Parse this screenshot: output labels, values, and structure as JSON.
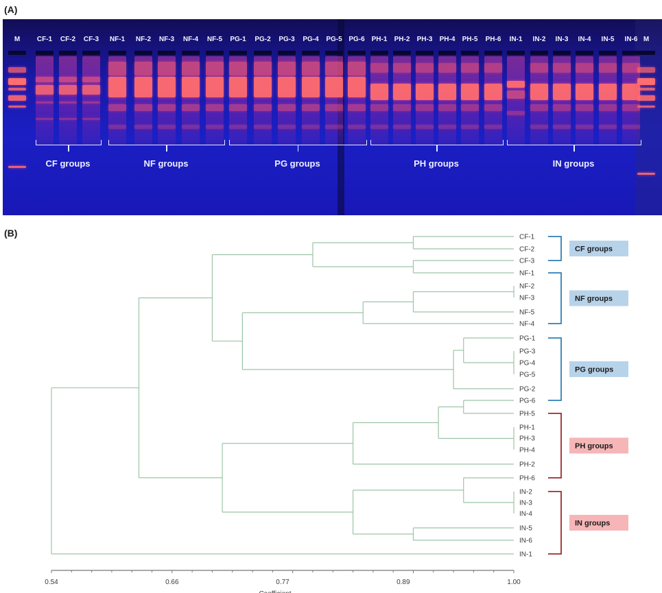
{
  "panel_a": {
    "label": "(A)",
    "lanes": [
      "M",
      "CF-1",
      "CF-2",
      "CF-3",
      "NF-1",
      "NF-2",
      "NF-3",
      "NF-4",
      "NF-5",
      "PG-1",
      "PG-2",
      "PG-3",
      "PG-4",
      "PG-5",
      "PG-6",
      "PH-1",
      "PH-2",
      "PH-3",
      "PH-4",
      "PH-5",
      "PH-6",
      "IN-1",
      "IN-2",
      "IN-3",
      "IN-4",
      "IN-5",
      "IN-6",
      "M"
    ],
    "groups": [
      {
        "label": "CF groups",
        "first_lane": 1,
        "last_lane": 3
      },
      {
        "label": "NF groups",
        "first_lane": 4,
        "last_lane": 8
      },
      {
        "label": "PG groups",
        "first_lane": 9,
        "last_lane": 14
      },
      {
        "label": "PH groups",
        "first_lane": 15,
        "last_lane": 20
      },
      {
        "label": "IN groups",
        "first_lane": 21,
        "last_lane": 26
      }
    ],
    "colors": {
      "band": "#ff3d7a",
      "band_bright": "#ff6a5a",
      "lane_glow": "#8a2aa8"
    }
  },
  "panel_b": {
    "label": "(B)",
    "xlabel": "Coefficient",
    "tick_labels": [
      "0.54",
      "0.66",
      "0.77",
      "0.89",
      "1.00"
    ],
    "group_boxes": [
      {
        "label": "CF groups",
        "color": "#b7d3ea",
        "bracket_color": "#2f7fb3",
        "from": "CF-1",
        "to": "CF-3"
      },
      {
        "label": "NF groups",
        "color": "#b7d3ea",
        "bracket_color": "#2f7fb3",
        "from": "NF-1",
        "to": "NF-4"
      },
      {
        "label": "PG groups",
        "color": "#b7d3ea",
        "bracket_color": "#2f7fb3",
        "from": "PG-1",
        "to": "PG-6"
      },
      {
        "label": "PH groups",
        "color": "#f6b6b8",
        "bracket_color": "#9b2a2e",
        "from": "PH-5",
        "to": "PH-6"
      },
      {
        "label": "IN groups",
        "color": "#f6b6b8",
        "bracket_color": "#9b2a2e",
        "from": "IN-2",
        "to": "IN-1"
      }
    ]
  },
  "chart_data": {
    "type": "dendrogram",
    "title": "",
    "xlabel": "Coefficient",
    "xlim": [
      0.54,
      1.0
    ],
    "x_ticks": [
      0.54,
      0.66,
      0.77,
      0.89,
      1.0
    ],
    "line_color": "#9cc4a6",
    "leaves": [
      "CF-1",
      "CF-2",
      "CF-3",
      "NF-1",
      "NF-2",
      "NF-3",
      "NF-5",
      "NF-4",
      "PG-1",
      "PG-3",
      "PG-4",
      "PG-5",
      "PG-2",
      "PG-6",
      "PH-5",
      "PH-1",
      "PH-3",
      "PH-4",
      "PH-2",
      "PH-6",
      "IN-2",
      "IN-3",
      "IN-4",
      "IN-5",
      "IN-6",
      "IN-1"
    ],
    "merges": [
      {
        "id": "c1",
        "children": [
          "CF-1",
          "CF-2"
        ],
        "height": 0.9
      },
      {
        "id": "c2",
        "children": [
          "CF-3",
          "NF-1"
        ],
        "height": 0.9
      },
      {
        "id": "c3",
        "children": [
          "c1",
          "c2"
        ],
        "height": 0.8
      },
      {
        "id": "n1",
        "children": [
          "NF-2",
          "NF-3"
        ],
        "height": 1.0
      },
      {
        "id": "n2",
        "children": [
          "n1",
          "NF-5"
        ],
        "height": 0.9
      },
      {
        "id": "n3",
        "children": [
          "n2",
          "NF-4"
        ],
        "height": 0.85
      },
      {
        "id": "p1",
        "children": [
          "PG-3",
          "PG-4",
          "PG-5"
        ],
        "height": 1.0
      },
      {
        "id": "p2",
        "children": [
          "PG-1",
          "p1"
        ],
        "height": 0.95
      },
      {
        "id": "p3",
        "children": [
          "p2",
          "PG-2"
        ],
        "height": 0.94
      },
      {
        "id": "np",
        "children": [
          "n3",
          "p3"
        ],
        "height": 0.73
      },
      {
        "id": "top",
        "children": [
          "c3",
          "np"
        ],
        "height": 0.7
      },
      {
        "id": "h1",
        "children": [
          "PG-6",
          "PH-5"
        ],
        "height": 0.95
      },
      {
        "id": "h2",
        "children": [
          "PH-1",
          "PH-3",
          "PH-4"
        ],
        "height": 1.0
      },
      {
        "id": "h3",
        "children": [
          "h1",
          "h2"
        ],
        "height": 0.925
      },
      {
        "id": "h4",
        "children": [
          "h3",
          "PH-2"
        ],
        "height": 0.84
      },
      {
        "id": "i1",
        "children": [
          "IN-2",
          "IN-3",
          "IN-4"
        ],
        "height": 1.0
      },
      {
        "id": "i2",
        "children": [
          "PH-6",
          "i1"
        ],
        "height": 0.95
      },
      {
        "id": "i3",
        "children": [
          "IN-5",
          "IN-6"
        ],
        "height": 0.9
      },
      {
        "id": "i4",
        "children": [
          "i2",
          "i3"
        ],
        "height": 0.84
      },
      {
        "id": "bot",
        "children": [
          "h4",
          "i4"
        ],
        "height": 0.71
      },
      {
        "id": "mid",
        "children": [
          "top",
          "bot"
        ],
        "height": 0.627
      },
      {
        "id": "root",
        "children": [
          "mid",
          "IN-1"
        ],
        "height": 0.54
      }
    ]
  }
}
